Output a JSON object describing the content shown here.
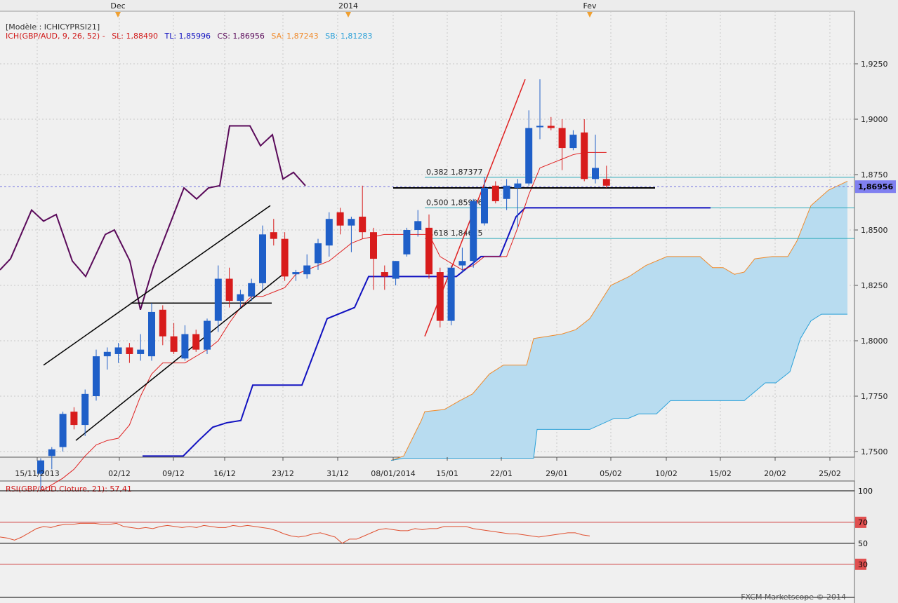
{
  "header": {
    "template": "[Modèle : ICHICYPRSI21]",
    "indicator": "ICH(GBP/AUD, 9, 26, 52) -",
    "sl": "SL: 1,88490",
    "tl": "TL: 1,85996",
    "cs": "CS: 1,86956",
    "sa": "SA: 1,87243",
    "sb": "SB: 1,81283"
  },
  "top_axis": [
    "Dec",
    "2014",
    "Fev"
  ],
  "price_axis": [
    "1,9250",
    "1,9000",
    "1,8750",
    "1,8500",
    "1,8250",
    "1,8000",
    "1,7750",
    "1,7500"
  ],
  "current_price": "1,86956",
  "date_axis": [
    "15/11/2013",
    "02/12",
    "09/12",
    "16/12",
    "23/12",
    "31/12",
    "08/01/2014",
    "15/01",
    "22/01",
    "29/01",
    "05/02",
    "10/02",
    "15/02",
    "20/02",
    "25/02"
  ],
  "fib_levels": [
    {
      "label": "0,382 1,87377",
      "price": 1.87377
    },
    {
      "label": "0,500 1,85996",
      "price": 1.85996
    },
    {
      "label": "0,618 1,84615",
      "price": 1.84615
    }
  ],
  "rsi": {
    "label": "RSI(GBP/AUD.Cloture, 21): 57,41",
    "levels": [
      "100",
      "70",
      "50",
      "30"
    ],
    "values": [
      56,
      55,
      53,
      56,
      60,
      64,
      66,
      65,
      67,
      68,
      68,
      69,
      69,
      69,
      68,
      68,
      69,
      66,
      65,
      64,
      65,
      64,
      66,
      67,
      66,
      65,
      66,
      65,
      67,
      66,
      65,
      65,
      67,
      66,
      67,
      66,
      65,
      64,
      62,
      59,
      57,
      56,
      57,
      59,
      60,
      58,
      56,
      50,
      54,
      54,
      57,
      60,
      63,
      64,
      63,
      62,
      62,
      64,
      63,
      64,
      64,
      66,
      66,
      66,
      66,
      64,
      63,
      62,
      61,
      60,
      59,
      59,
      58,
      57,
      56,
      57,
      58,
      59,
      60,
      60,
      58,
      57
    ]
  },
  "watermark": "FXCM Marketscope © 2014",
  "colors": {
    "up": "#1f5fc8",
    "down": "#d81c1c",
    "tenkan": "#e02020",
    "kijun": "#1010c0",
    "chikou": "#5a0a5a",
    "span_a": "#f08a2a",
    "span_b": "#2aa0d8",
    "cloud": "#b8dcf0"
  },
  "chart_data": {
    "type": "candlestick",
    "symbol": "GBP/AUD",
    "interval": "daily",
    "ylim": [
      1.745,
      1.95
    ],
    "candles": [
      {
        "o": 1.74,
        "h": 1.747,
        "l": 1.733,
        "c": 1.746
      },
      {
        "o": 1.748,
        "h": 1.752,
        "l": 1.742,
        "c": 1.751
      },
      {
        "o": 1.752,
        "h": 1.768,
        "l": 1.75,
        "c": 1.767
      },
      {
        "o": 1.768,
        "h": 1.77,
        "l": 1.76,
        "c": 1.762
      },
      {
        "o": 1.762,
        "h": 1.778,
        "l": 1.757,
        "c": 1.776
      },
      {
        "o": 1.775,
        "h": 1.796,
        "l": 1.773,
        "c": 1.793
      },
      {
        "o": 1.793,
        "h": 1.797,
        "l": 1.787,
        "c": 1.795
      },
      {
        "o": 1.794,
        "h": 1.799,
        "l": 1.79,
        "c": 1.797
      },
      {
        "o": 1.797,
        "h": 1.799,
        "l": 1.79,
        "c": 1.794
      },
      {
        "o": 1.794,
        "h": 1.803,
        "l": 1.791,
        "c": 1.796
      },
      {
        "o": 1.793,
        "h": 1.817,
        "l": 1.791,
        "c": 1.813
      },
      {
        "o": 1.814,
        "h": 1.816,
        "l": 1.798,
        "c": 1.802
      },
      {
        "o": 1.802,
        "h": 1.808,
        "l": 1.794,
        "c": 1.795
      },
      {
        "o": 1.792,
        "h": 1.807,
        "l": 1.791,
        "c": 1.803
      },
      {
        "o": 1.803,
        "h": 1.805,
        "l": 1.795,
        "c": 1.796
      },
      {
        "o": 1.796,
        "h": 1.81,
        "l": 1.794,
        "c": 1.809
      },
      {
        "o": 1.809,
        "h": 1.834,
        "l": 1.804,
        "c": 1.828
      },
      {
        "o": 1.828,
        "h": 1.833,
        "l": 1.815,
        "c": 1.818
      },
      {
        "o": 1.818,
        "h": 1.823,
        "l": 1.815,
        "c": 1.821
      },
      {
        "o": 1.82,
        "h": 1.828,
        "l": 1.818,
        "c": 1.826
      },
      {
        "o": 1.826,
        "h": 1.852,
        "l": 1.823,
        "c": 1.848
      },
      {
        "o": 1.849,
        "h": 1.855,
        "l": 1.843,
        "c": 1.846
      },
      {
        "o": 1.846,
        "h": 1.849,
        "l": 1.827,
        "c": 1.829
      },
      {
        "o": 1.83,
        "h": 1.832,
        "l": 1.827,
        "c": 1.831
      },
      {
        "o": 1.83,
        "h": 1.839,
        "l": 1.828,
        "c": 1.834
      },
      {
        "o": 1.835,
        "h": 1.846,
        "l": 1.832,
        "c": 1.844
      },
      {
        "o": 1.843,
        "h": 1.858,
        "l": 1.838,
        "c": 1.855
      },
      {
        "o": 1.858,
        "h": 1.86,
        "l": 1.848,
        "c": 1.852
      },
      {
        "o": 1.852,
        "h": 1.856,
        "l": 1.84,
        "c": 1.855
      },
      {
        "o": 1.856,
        "h": 1.87,
        "l": 1.846,
        "c": 1.849
      },
      {
        "o": 1.849,
        "h": 1.851,
        "l": 1.823,
        "c": 1.837
      },
      {
        "o": 1.831,
        "h": 1.834,
        "l": 1.823,
        "c": 1.829
      },
      {
        "o": 1.828,
        "h": 1.836,
        "l": 1.825,
        "c": 1.836
      },
      {
        "o": 1.839,
        "h": 1.851,
        "l": 1.838,
        "c": 1.85
      },
      {
        "o": 1.85,
        "h": 1.859,
        "l": 1.847,
        "c": 1.854
      },
      {
        "o": 1.851,
        "h": 1.857,
        "l": 1.828,
        "c": 1.83
      },
      {
        "o": 1.831,
        "h": 1.833,
        "l": 1.806,
        "c": 1.809
      },
      {
        "o": 1.809,
        "h": 1.834,
        "l": 1.807,
        "c": 1.833
      },
      {
        "o": 1.834,
        "h": 1.842,
        "l": 1.831,
        "c": 1.836
      },
      {
        "o": 1.836,
        "h": 1.864,
        "l": 1.833,
        "c": 1.863
      },
      {
        "o": 1.853,
        "h": 1.874,
        "l": 1.852,
        "c": 1.869
      },
      {
        "o": 1.87,
        "h": 1.872,
        "l": 1.862,
        "c": 1.863
      },
      {
        "o": 1.864,
        "h": 1.873,
        "l": 1.859,
        "c": 1.87
      },
      {
        "o": 1.869,
        "h": 1.873,
        "l": 1.851,
        "c": 1.871
      },
      {
        "o": 1.871,
        "h": 1.904,
        "l": 1.87,
        "c": 1.896
      },
      {
        "o": 1.897,
        "h": 1.918,
        "l": 1.891,
        "c": 1.897
      },
      {
        "o": 1.897,
        "h": 1.901,
        "l": 1.895,
        "c": 1.896
      },
      {
        "o": 1.896,
        "h": 1.9,
        "l": 1.877,
        "c": 1.887
      },
      {
        "o": 1.887,
        "h": 1.895,
        "l": 1.886,
        "c": 1.893
      },
      {
        "o": 1.894,
        "h": 1.9,
        "l": 1.872,
        "c": 1.873
      },
      {
        "o": 1.873,
        "h": 1.893,
        "l": 1.871,
        "c": 1.878
      },
      {
        "o": 1.873,
        "h": 1.879,
        "l": 1.869,
        "c": 1.87
      }
    ],
    "tenkan": [
      1.732,
      1.735,
      1.738,
      1.742,
      1.748,
      1.753,
      1.755,
      1.756,
      1.762,
      1.775,
      1.785,
      1.79,
      1.79,
      1.79,
      1.793,
      1.796,
      1.8,
      1.808,
      1.815,
      1.82,
      1.82,
      1.822,
      1.824,
      1.83,
      1.832,
      1.834,
      1.836,
      1.84,
      1.844,
      1.846,
      1.847,
      1.848,
      1.848,
      1.848,
      1.848,
      1.848,
      1.838,
      1.835,
      1.832,
      1.834,
      1.838,
      1.838,
      1.838,
      1.851,
      1.866,
      1.878,
      1.88,
      1.882,
      1.884,
      1.885,
      1.885,
      1.885
    ],
    "kijun_steps": [
      [
        203,
        1.748
      ],
      [
        261,
        1.748
      ],
      [
        283,
        1.755
      ],
      [
        303,
        1.761
      ],
      [
        323,
        1.763
      ],
      [
        343,
        1.764
      ],
      [
        360,
        1.78
      ],
      [
        430,
        1.78
      ],
      [
        466,
        1.81
      ],
      [
        505,
        1.815
      ],
      [
        525,
        1.829
      ],
      [
        650,
        1.829
      ],
      [
        662,
        1.832
      ],
      [
        685,
        1.838
      ],
      [
        712,
        1.838
      ],
      [
        735,
        1.856
      ],
      [
        748,
        1.86
      ],
      [
        1012,
        1.86
      ]
    ],
    "chikou": [
      [
        0,
        1.832
      ],
      [
        15,
        1.837
      ],
      [
        45,
        1.859
      ],
      [
        62,
        1.854
      ],
      [
        80,
        1.857
      ],
      [
        103,
        1.836
      ],
      [
        122,
        1.829
      ],
      [
        150,
        1.848
      ],
      [
        163,
        1.85
      ],
      [
        185,
        1.836
      ],
      [
        200,
        1.814
      ],
      [
        218,
        1.833
      ],
      [
        240,
        1.851
      ],
      [
        262,
        1.869
      ],
      [
        280,
        1.864
      ],
      [
        297,
        1.869
      ],
      [
        313,
        1.87
      ],
      [
        327,
        1.897
      ],
      [
        356,
        1.897
      ],
      [
        371,
        1.888
      ],
      [
        388,
        1.893
      ],
      [
        403,
        1.873
      ],
      [
        418,
        1.876
      ],
      [
        435,
        1.87
      ]
    ],
    "span_a": [
      [
        557,
        1.746
      ],
      [
        575,
        1.748
      ],
      [
        600,
        1.764
      ],
      [
        605,
        1.768
      ],
      [
        633,
        1.769
      ],
      [
        655,
        1.773
      ],
      [
        673,
        1.776
      ],
      [
        697,
        1.785
      ],
      [
        717,
        1.789
      ],
      [
        750,
        1.789
      ],
      [
        760,
        1.801
      ],
      [
        800,
        1.803
      ],
      [
        820,
        1.805
      ],
      [
        840,
        1.81
      ],
      [
        870,
        1.825
      ],
      [
        896,
        1.829
      ],
      [
        920,
        1.834
      ],
      [
        950,
        1.838
      ],
      [
        997,
        1.838
      ],
      [
        1015,
        1.833
      ],
      [
        1030,
        1.833
      ],
      [
        1046,
        1.83
      ],
      [
        1060,
        1.831
      ],
      [
        1075,
        1.837
      ],
      [
        1100,
        1.838
      ],
      [
        1122,
        1.838
      ],
      [
        1135,
        1.845
      ],
      [
        1155,
        1.861
      ],
      [
        1180,
        1.868
      ],
      [
        1207,
        1.872
      ]
    ],
    "span_b": [
      [
        557,
        1.746
      ],
      [
        575,
        1.747
      ],
      [
        600,
        1.747
      ],
      [
        700,
        1.747
      ],
      [
        760,
        1.747
      ],
      [
        765,
        1.76
      ],
      [
        840,
        1.76
      ],
      [
        875,
        1.765
      ],
      [
        895,
        1.765
      ],
      [
        910,
        1.767
      ],
      [
        935,
        1.767
      ],
      [
        955,
        1.773
      ],
      [
        1060,
        1.773
      ],
      [
        1090,
        1.781
      ],
      [
        1105,
        1.781
      ],
      [
        1125,
        1.786
      ],
      [
        1140,
        1.801
      ],
      [
        1155,
        1.809
      ],
      [
        1170,
        1.812
      ],
      [
        1207,
        1.812
      ]
    ],
    "trendlines": [
      [
        [
          62,
          1.789
        ],
        [
          385,
          1.861
        ]
      ],
      [
        [
          108,
          1.755
        ],
        [
          403,
          1.83
        ]
      ],
      [
        [
          186,
          1.817
        ],
        [
          387,
          1.817
        ]
      ],
      [
        [
          560,
          1.869
        ],
        [
          933,
          1.869
        ]
      ],
      [
        [
          605,
          1.802
        ],
        [
          748,
          1.918
        ]
      ]
    ]
  }
}
